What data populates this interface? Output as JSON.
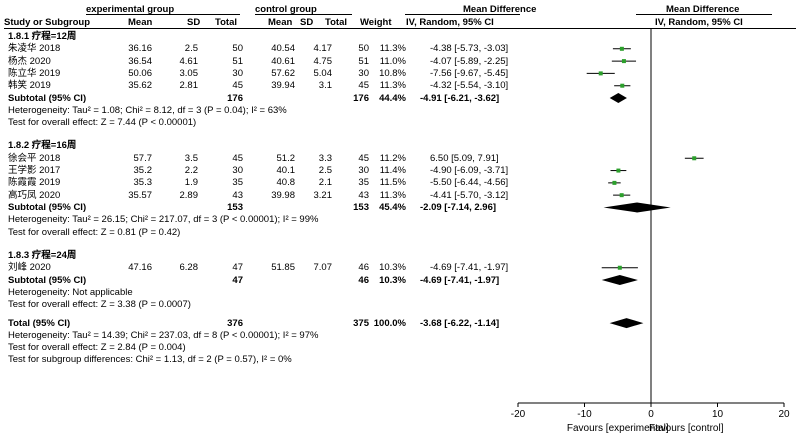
{
  "header": {
    "study_or_subgroup": "Study or Subgroup",
    "exp_group": "experimental group",
    "ctl_group": "control group",
    "mean": "Mean",
    "sd": "SD",
    "total": "Total",
    "weight": "Weight",
    "md_title": "Mean Difference",
    "md_method": "IV, Random, 95% CI",
    "md_title_plot": "Mean Difference",
    "md_method_plot": "IV, Random, 95% CI"
  },
  "subgroups": [
    {
      "label": "1.8.1 疗程=12周",
      "studies": [
        {
          "name": "朱凌华 2018",
          "e_mean": "36.16",
          "e_sd": "2.5",
          "e_n": "50",
          "c_mean": "40.54",
          "c_sd": "4.17",
          "c_n": "50",
          "weight": "11.3%",
          "ci_text": "-4.38 [-5.73, -3.03]"
        },
        {
          "name": "杨杰 2020",
          "e_mean": "36.54",
          "e_sd": "4.61",
          "e_n": "51",
          "c_mean": "40.61",
          "c_sd": "4.75",
          "c_n": "51",
          "weight": "11.0%",
          "ci_text": "-4.07 [-5.89, -2.25]"
        },
        {
          "name": "陈立华 2019",
          "e_mean": "50.06",
          "e_sd": "3.05",
          "e_n": "30",
          "c_mean": "57.62",
          "c_sd": "5.04",
          "c_n": "30",
          "weight": "10.8%",
          "ci_text": "-7.56 [-9.67, -5.45]"
        },
        {
          "name": "韩笑 2019",
          "e_mean": "35.62",
          "e_sd": "2.81",
          "e_n": "45",
          "c_mean": "39.94",
          "c_sd": "3.1",
          "c_n": "45",
          "weight": "11.3%",
          "ci_text": "-4.32 [-5.54, -3.10]"
        }
      ],
      "subtotal": {
        "label": "Subtotal (95% CI)",
        "e_n": "176",
        "c_n": "176",
        "weight": "44.4%",
        "ci_text": "-4.91 [-6.21, -3.62]"
      },
      "heterogeneity": "Heterogeneity: Tau² = 1.08; Chi² = 8.12, df = 3 (P = 0.04); I² = 63%",
      "overall": "Test for overall effect: Z = 7.44 (P < 0.00001)"
    },
    {
      "label": "1.8.2 疗程=16周",
      "studies": [
        {
          "name": "徐会平 2018",
          "e_mean": "57.7",
          "e_sd": "3.5",
          "e_n": "45",
          "c_mean": "51.2",
          "c_sd": "3.3",
          "c_n": "45",
          "weight": "11.2%",
          "ci_text": "6.50 [5.09, 7.91]"
        },
        {
          "name": "王学影 2017",
          "e_mean": "35.2",
          "e_sd": "2.2",
          "e_n": "30",
          "c_mean": "40.1",
          "c_sd": "2.5",
          "c_n": "30",
          "weight": "11.4%",
          "ci_text": "-4.90 [-6.09, -3.71]"
        },
        {
          "name": "陈霞霞 2019",
          "e_mean": "35.3",
          "e_sd": "1.9",
          "e_n": "35",
          "c_mean": "40.8",
          "c_sd": "2.1",
          "c_n": "35",
          "weight": "11.5%",
          "ci_text": "-5.50 [-6.44, -4.56]"
        },
        {
          "name": "高巧凤 2020",
          "e_mean": "35.57",
          "e_sd": "2.89",
          "e_n": "43",
          "c_mean": "39.98",
          "c_sd": "3.21",
          "c_n": "43",
          "weight": "11.3%",
          "ci_text": "-4.41 [-5.70, -3.12]"
        }
      ],
      "subtotal": {
        "label": "Subtotal (95% CI)",
        "e_n": "153",
        "c_n": "153",
        "weight": "45.4%",
        "ci_text": "-2.09 [-7.14, 2.96]"
      },
      "heterogeneity": "Heterogeneity: Tau² = 26.15; Chi² = 217.07, df = 3 (P < 0.00001); I² = 99%",
      "overall": "Test for overall effect: Z = 0.81 (P = 0.42)"
    },
    {
      "label": "1.8.3 疗程=24周",
      "studies": [
        {
          "name": "刘峰 2020",
          "e_mean": "47.16",
          "e_sd": "6.28",
          "e_n": "47",
          "c_mean": "51.85",
          "c_sd": "7.07",
          "c_n": "46",
          "weight": "10.3%",
          "ci_text": "-4.69 [-7.41, -1.97]"
        }
      ],
      "subtotal": {
        "label": "Subtotal (95% CI)",
        "e_n": "47",
        "c_n": "46",
        "weight": "10.3%",
        "ci_text": "-4.69 [-7.41, -1.97]"
      },
      "heterogeneity": "Heterogeneity: Not applicable",
      "overall": "Test for overall effect: Z = 3.38 (P = 0.0007)"
    }
  ],
  "total": {
    "label": "Total (95% CI)",
    "e_n": "376",
    "c_n": "375",
    "weight": "100.0%",
    "ci_text": "-3.68 [-6.22, -1.14]"
  },
  "footer": {
    "heterogeneity": "Heterogeneity: Tau² = 14.39; Chi² = 237.03, df = 8 (P < 0.00001); I² = 97%",
    "overall": "Test for overall effect: Z = 2.84 (P = 0.004)",
    "subgroup_diff": "Test for subgroup differences: Chi² = 1.13, df = 2 (P = 0.57), I² = 0%"
  },
  "chart_data": {
    "type": "forest",
    "x_range": [
      -20,
      20
    ],
    "x_ticks": [
      "-20",
      "-10",
      "0",
      "10",
      "20"
    ],
    "x_tick_values": [
      -20,
      -10,
      0,
      10,
      20
    ],
    "favours_left": "Favours [experimental]",
    "favours_right": "Favours [control]",
    "studies": [
      {
        "name": "朱凌华 2018",
        "md": -4.38,
        "lo": -5.73,
        "hi": -3.03,
        "weight": 11.3
      },
      {
        "name": "杨杰 2020",
        "md": -4.07,
        "lo": -5.89,
        "hi": -2.25,
        "weight": 11.0
      },
      {
        "name": "陈立华 2019",
        "md": -7.56,
        "lo": -9.67,
        "hi": -5.45,
        "weight": 10.8
      },
      {
        "name": "韩笑 2019",
        "md": -4.32,
        "lo": -5.54,
        "hi": -3.1,
        "weight": 11.3
      },
      {
        "name": "徐会平 2018",
        "md": 6.5,
        "lo": 5.09,
        "hi": 7.91,
        "weight": 11.2
      },
      {
        "name": "王学影 2017",
        "md": -4.9,
        "lo": -6.09,
        "hi": -3.71,
        "weight": 11.4
      },
      {
        "name": "陈霞霞 2019",
        "md": -5.5,
        "lo": -6.44,
        "hi": -4.56,
        "weight": 11.5
      },
      {
        "name": "高巧凤 2020",
        "md": -4.41,
        "lo": -5.7,
        "hi": -3.12,
        "weight": 11.3
      },
      {
        "name": "刘峰 2020",
        "md": -4.69,
        "lo": -7.41,
        "hi": -1.97,
        "weight": 10.3
      }
    ],
    "diamonds": [
      {
        "name": "Subtotal 1.8.1",
        "md": -4.91,
        "lo": -6.21,
        "hi": -3.62
      },
      {
        "name": "Subtotal 1.8.2",
        "md": -2.09,
        "lo": -7.14,
        "hi": 2.96
      },
      {
        "name": "Subtotal 1.8.3",
        "md": -4.69,
        "lo": -7.41,
        "hi": -1.97
      },
      {
        "name": "Total",
        "md": -3.68,
        "lo": -6.22,
        "hi": -1.14
      }
    ],
    "colors": {
      "marker": "#2ca02c",
      "line": "#000000"
    }
  }
}
